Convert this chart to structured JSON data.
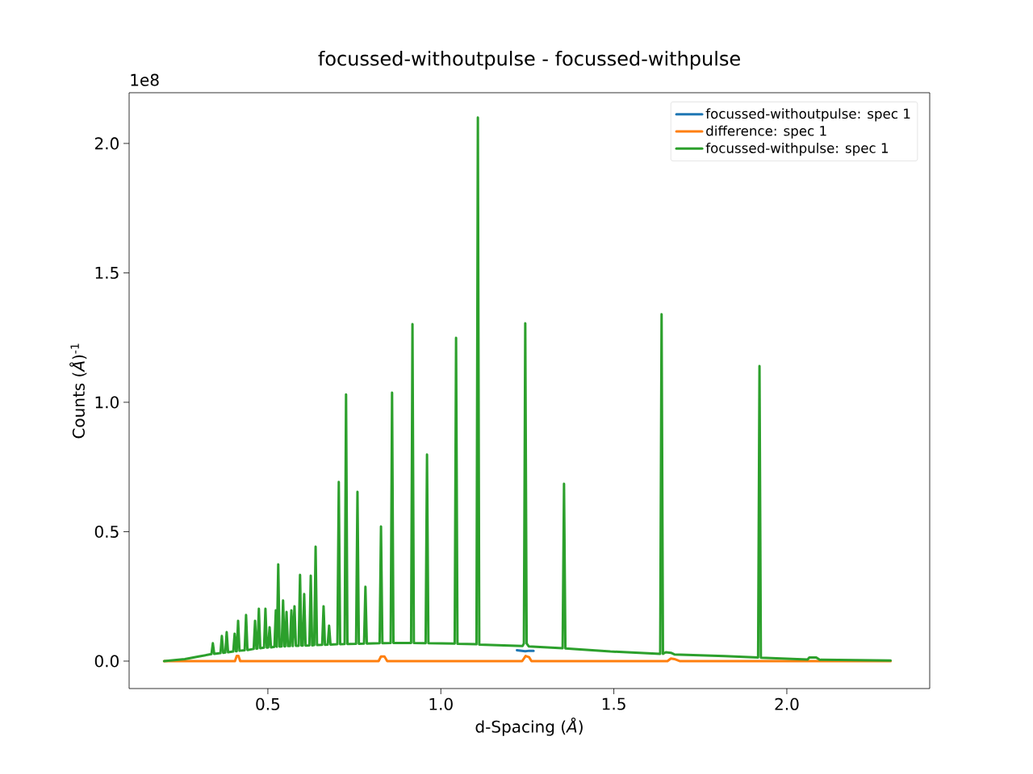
{
  "chart_data": {
    "type": "line",
    "title": "focussed-withoutpulse - focussed-withpulse",
    "xlabel": "d-Spacing (*Å*)",
    "ylabel": "Counts (*Å*)$^{-1}$",
    "annotations": [
      "1e8"
    ],
    "xlim": [
      0.099,
      2.413
    ],
    "ylim": [
      -0.106,
      2.196
    ],
    "xticks": [
      {
        "value": 0.5,
        "label": "0.5"
      },
      {
        "value": 1,
        "label": "1.0"
      },
      {
        "value": 1.5,
        "label": "1.5"
      },
      {
        "value": 2,
        "label": "2.0"
      }
    ],
    "yticks": [
      {
        "value": 0,
        "label": "0.0"
      },
      {
        "value": 0.5,
        "label": "0.5"
      },
      {
        "value": 1,
        "label": "1.0"
      },
      {
        "value": 1.5,
        "label": "1.5"
      },
      {
        "value": 2,
        "label": "2.0"
      }
    ],
    "legend": "top right",
    "marker": "none",
    "line_style": "solid",
    "series": [
      {
        "name": "focussed-withoutpulse: spec 1",
        "color": "#1f77b4",
        "x": [
          1.22,
          1.232,
          1.244,
          1.256,
          1.268
        ],
        "values": [
          0.042,
          0.04,
          0.038,
          0.04,
          0.04
        ]
      },
      {
        "name": "difference: spec 1",
        "color": "#ff7f0e",
        "x": [
          0.2,
          0.405,
          0.41,
          0.415,
          0.42,
          0.82,
          0.827,
          0.837,
          0.845,
          1.235,
          1.245,
          1.255,
          1.262,
          1.655,
          1.665,
          1.675,
          1.69,
          2.3
        ],
        "values": [
          0,
          0,
          0.02,
          0.02,
          0,
          0,
          0.018,
          0.018,
          0,
          0,
          0.02,
          0.015,
          0,
          0,
          0.01,
          0.008,
          0,
          0
        ]
      },
      {
        "name": "focussed-withpulse: spec 1",
        "color": "#2ca02c",
        "x": [
          0.2,
          0.26,
          0.3,
          0.337,
          0.341,
          0.345,
          0.363,
          0.367,
          0.371,
          0.377,
          0.381,
          0.385,
          0.4,
          0.404,
          0.408,
          0.41,
          0.414,
          0.418,
          0.433,
          0.437,
          0.441,
          0.459,
          0.463,
          0.467,
          0.47,
          0.474,
          0.478,
          0.489,
          0.493,
          0.497,
          0.501,
          0.505,
          0.509,
          0.519,
          0.523,
          0.526,
          0.53,
          0.534,
          0.54,
          0.544,
          0.548,
          0.55,
          0.554,
          0.558,
          0.564,
          0.568,
          0.572,
          0.577,
          0.581,
          0.589,
          0.593,
          0.597,
          0.601,
          0.605,
          0.609,
          0.62,
          0.624,
          0.628,
          0.634,
          0.638,
          0.642,
          0.657,
          0.661,
          0.665,
          0.673,
          0.677,
          0.681,
          0.701,
          0.705,
          0.709,
          0.722,
          0.726,
          0.73,
          0.755,
          0.759,
          0.763,
          0.778,
          0.782,
          0.786,
          0.823,
          0.827,
          0.831,
          0.855,
          0.859,
          0.863,
          0.914,
          0.918,
          0.922,
          0.956,
          0.96,
          0.964,
          1.04,
          1.044,
          1.048,
          1.103,
          1.107,
          1.111,
          1.236,
          1.24,
          1.244,
          1.248,
          1.254,
          1.352,
          1.356,
          1.36,
          1.49,
          1.634,
          1.638,
          1.642,
          1.65,
          1.665,
          1.675,
          1.82,
          1.917,
          1.921,
          1.925,
          2.06,
          2.065,
          2.085,
          2.095,
          2.3
        ],
        "values": [
          0,
          0.008,
          0.018,
          0.027,
          0.069,
          0.028,
          0.031,
          0.097,
          0.032,
          0.033,
          0.112,
          0.034,
          0.037,
          0.106,
          0.038,
          0.038,
          0.156,
          0.04,
          0.042,
          0.178,
          0.043,
          0.047,
          0.156,
          0.048,
          0.049,
          0.202,
          0.05,
          0.052,
          0.202,
          0.052,
          0.053,
          0.131,
          0.053,
          0.055,
          0.196,
          0.055,
          0.374,
          0.056,
          0.057,
          0.234,
          0.057,
          0.057,
          0.19,
          0.058,
          0.058,
          0.196,
          0.058,
          0.212,
          0.059,
          0.059,
          0.333,
          0.06,
          0.06,
          0.259,
          0.06,
          0.061,
          0.33,
          0.061,
          0.062,
          0.442,
          0.062,
          0.063,
          0.212,
          0.063,
          0.064,
          0.137,
          0.064,
          0.065,
          0.692,
          0.065,
          0.066,
          1.03,
          0.066,
          0.067,
          0.654,
          0.067,
          0.068,
          0.287,
          0.068,
          0.069,
          0.52,
          0.069,
          0.07,
          1.037,
          0.07,
          0.07,
          1.302,
          0.07,
          0.069,
          0.798,
          0.069,
          0.068,
          1.249,
          0.067,
          0.065,
          2.1,
          0.064,
          0.058,
          0.068,
          1.305,
          0.068,
          0.057,
          0.05,
          0.685,
          0.049,
          0.037,
          0.028,
          1.34,
          0.028,
          0.034,
          0.032,
          0.026,
          0.019,
          0.014,
          1.14,
          0.013,
          0.006,
          0.014,
          0.014,
          0.005,
          0.002
        ]
      }
    ]
  }
}
